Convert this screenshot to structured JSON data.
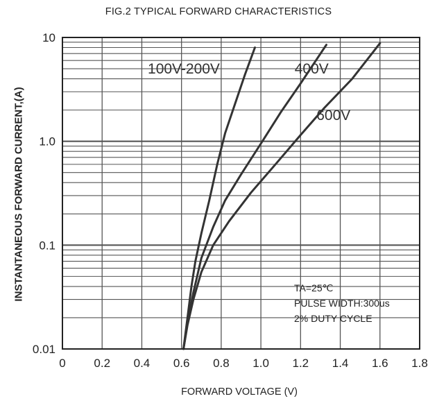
{
  "chart_data": {
    "type": "line",
    "title": "FIG.2 TYPICAL FORWARD CHARACTERISTICS",
    "xlabel": "FORWARD VOLTAGE (V)",
    "ylabel": "INSTANTANEOUS FORWARD CURRENT,(A)",
    "x_scale": "linear",
    "y_scale": "log",
    "xlim": [
      0,
      1.8
    ],
    "ylim": [
      0.01,
      10
    ],
    "x_ticks": [
      "0",
      "0.2",
      "0.4",
      "0.6",
      "0.8",
      "1.0",
      "1.2",
      "1.4",
      "1.6",
      "1.8"
    ],
    "y_ticks": [
      "0.01",
      "0.1",
      "1.0",
      "10"
    ],
    "grid": true,
    "series": [
      {
        "name": "100V-200V",
        "points": [
          [
            0.61,
            0.01
          ],
          [
            0.63,
            0.02
          ],
          [
            0.65,
            0.04
          ],
          [
            0.67,
            0.07
          ],
          [
            0.7,
            0.13
          ],
          [
            0.74,
            0.27
          ],
          [
            0.78,
            0.6
          ],
          [
            0.82,
            1.2
          ],
          [
            0.87,
            2.3
          ],
          [
            0.92,
            4.4
          ],
          [
            0.97,
            8.0
          ]
        ]
      },
      {
        "name": "400V",
        "points": [
          [
            0.61,
            0.01
          ],
          [
            0.63,
            0.018
          ],
          [
            0.66,
            0.035
          ],
          [
            0.7,
            0.075
          ],
          [
            0.76,
            0.15
          ],
          [
            0.82,
            0.27
          ],
          [
            0.9,
            0.48
          ],
          [
            1.0,
            0.95
          ],
          [
            1.1,
            1.9
          ],
          [
            1.2,
            3.6
          ],
          [
            1.33,
            8.5
          ]
        ]
      },
      {
        "name": "600V",
        "points": [
          [
            0.61,
            0.01
          ],
          [
            0.63,
            0.017
          ],
          [
            0.66,
            0.03
          ],
          [
            0.7,
            0.055
          ],
          [
            0.76,
            0.1
          ],
          [
            0.84,
            0.17
          ],
          [
            0.95,
            0.32
          ],
          [
            1.08,
            0.62
          ],
          [
            1.2,
            1.15
          ],
          [
            1.32,
            2.1
          ],
          [
            1.46,
            4.0
          ],
          [
            1.6,
            8.8
          ]
        ]
      }
    ],
    "annotations": [
      "TA=25℃",
      "PULSE WIDTH:300us",
      "2% DUTY CYCLE"
    ],
    "colors": {
      "line": "#333333",
      "grid": "#555555",
      "axis": "#222222"
    }
  }
}
